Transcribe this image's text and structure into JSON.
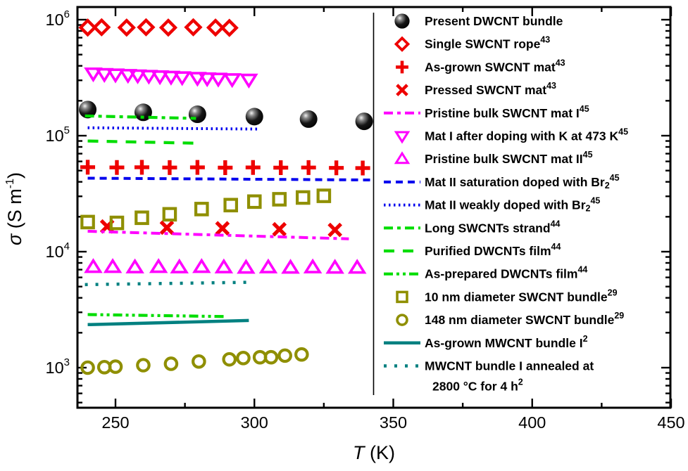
{
  "figure": {
    "background": "#ffffff",
    "frame_color": "#000000",
    "legend_divider": true
  },
  "chart_data": {
    "type": "scatter",
    "title": "",
    "xlabel": "T (K)",
    "ylabel": "σ (S m⁻¹)",
    "grid": false,
    "legend_position": "right",
    "x_axis": {
      "min": 236.3,
      "max": 449.8,
      "major_ticks": [
        250,
        300,
        350,
        400,
        450
      ],
      "minor_ticks": [
        275,
        325,
        375,
        425
      ]
    },
    "y_axis": {
      "scale": "log",
      "min": 450,
      "max": 1300000,
      "decade_exponents": [
        3,
        4,
        5,
        6
      ],
      "tick_label_base": "10"
    },
    "series": [
      {
        "id": "present-dwcnt-bundle",
        "label": "Present DWCNT bundle",
        "sup": "",
        "kind": "marker",
        "marker": "sphere",
        "color": "#000000",
        "x": [
          240,
          260,
          279.5,
          300,
          319.5,
          339.5
        ],
        "y": [
          168000,
          159000,
          153000,
          146000,
          139000,
          133000
        ]
      },
      {
        "id": "single-swcnt-rope",
        "label": "Single SWCNT rope",
        "sup": "43",
        "kind": "marker",
        "marker": "diamond",
        "color": "#ee0000",
        "x": [
          240,
          245,
          254,
          261,
          269,
          278,
          286,
          291
        ],
        "y": [
          855000,
          860000,
          855000,
          860000,
          855000,
          860000,
          855000,
          850000
        ]
      },
      {
        "id": "as-grown-swcnt-mat",
        "label": "As-grown SWCNT mat",
        "sup": "43",
        "kind": "marker",
        "marker": "plus",
        "color": "#ee0000",
        "x": [
          240,
          250.5,
          259.5,
          269.5,
          279.5,
          289.5,
          299.5,
          309.5,
          319.5,
          329.5,
          339
        ],
        "y": [
          53500,
          53200,
          53400,
          53100,
          53300,
          53000,
          53200,
          53000,
          53100,
          52800,
          52600
        ]
      },
      {
        "id": "pressed-swcnt-mat",
        "label": "Pressed SWCNT mat",
        "sup": "43",
        "kind": "marker",
        "marker": "x",
        "color": "#ee0000",
        "x": [
          247,
          268.5,
          288.5,
          309,
          329
        ],
        "y": [
          16500,
          16100,
          15900,
          15600,
          15400
        ]
      },
      {
        "id": "pristine-bulk-swcnt-mat-i",
        "label": "Pristine bulk SWCNT mat I",
        "sup": "45",
        "kind": "line",
        "dash": "dashdot",
        "width": 4,
        "color": "#ff00ff",
        "x": [
          240,
          334
        ],
        "y": [
          15000,
          12900
        ]
      },
      {
        "id": "mat-i-doped-k-473",
        "label": "Mat I after doping with K at 473 K",
        "sup": "45",
        "kind": "marker",
        "marker": "triangle-down",
        "color": "#ff00ff",
        "x": [
          242,
          246,
          250,
          254.5,
          258,
          262,
          266,
          270,
          274,
          279.5,
          283,
          287,
          292,
          298
        ],
        "y": [
          345000,
          341000,
          338000,
          335000,
          332000,
          329000,
          326000,
          323000,
          320000,
          316000,
          313000,
          311000,
          308000,
          305000
        ]
      },
      {
        "id": "pristine-bulk-swcnt-mat-ii",
        "label": "Pristine bulk SWCNT mat II",
        "sup": "45",
        "kind": "marker",
        "marker": "triangle-up",
        "color": "#ff00ff",
        "x": [
          242,
          249,
          257,
          265.5,
          273,
          281,
          289,
          297,
          305,
          313,
          321,
          329,
          337
        ],
        "y": [
          7350,
          7350,
          7300,
          7350,
          7300,
          7350,
          7300,
          7250,
          7300,
          7250,
          7300,
          7250,
          7250
        ]
      },
      {
        "id": "mat-ii-saturation-doped-br2",
        "label": "Mat II saturation doped with Br₂",
        "sup": "45",
        "kind": "line",
        "dash": "dashed",
        "width": 4,
        "color": "#0000ee",
        "x": [
          240,
          342
        ],
        "y": [
          43000,
          41500
        ]
      },
      {
        "id": "mat-ii-weakly-doped-br2",
        "label": "Mat II weakly doped with Br₂",
        "sup": "45",
        "kind": "line",
        "dash": "dotted",
        "width": 4,
        "color": "#0000ee",
        "x": [
          240,
          302
        ],
        "y": [
          117000,
          114000
        ]
      },
      {
        "id": "long-swcnts-strand",
        "label": "Long SWCNTs strand",
        "sup": "44",
        "kind": "line",
        "dash": "dashdot",
        "width": 4.2,
        "color": "#00dd00",
        "x": [
          239,
          279
        ],
        "y": [
          148000,
          141000
        ]
      },
      {
        "id": "purified-dwcnts-film",
        "label": "Purified DWCNTs film",
        "sup": "44",
        "kind": "line",
        "dash": "longdash",
        "width": 4.2,
        "color": "#00dd00",
        "x": [
          240,
          280
        ],
        "y": [
          90000,
          86000
        ]
      },
      {
        "id": "as-prepared-dwcnts-film",
        "label": "As-prepared DWCNTs film",
        "sup": "44",
        "kind": "line",
        "dash": "dashdotdot",
        "width": 4.2,
        "color": "#00dd00",
        "x": [
          240,
          289
        ],
        "y": [
          2870,
          2760
        ]
      },
      {
        "id": "swcnt-bundle-10nm",
        "label": "10 nm diameter SWCNT bundle",
        "sup": "29",
        "kind": "marker",
        "marker": "square",
        "color": "#8f8f00",
        "x": [
          240,
          250.5,
          259.5,
          269.5,
          281,
          291.5,
          300,
          309,
          317.5,
          325
        ],
        "y": [
          18000,
          17700,
          19600,
          21000,
          23300,
          25200,
          27000,
          28300,
          29300,
          30300
        ]
      },
      {
        "id": "swcnt-bundle-148nm",
        "label": "148 nm diameter SWCNT bundle",
        "sup": "29",
        "kind": "marker",
        "marker": "circle",
        "color": "#8f8f00",
        "x": [
          240,
          246,
          250,
          260,
          270,
          280,
          291,
          296,
          302,
          306,
          311,
          317
        ],
        "y": [
          1000,
          1010,
          1020,
          1050,
          1080,
          1130,
          1180,
          1210,
          1230,
          1230,
          1270,
          1300
        ]
      },
      {
        "id": "as-grown-mwcnt-bundle-i",
        "label": "As-grown MWCNT bundle I",
        "sup": "2",
        "kind": "line",
        "dash": "solid",
        "width": 4.5,
        "color": "#008080",
        "x": [
          240,
          298
        ],
        "y": [
          2350,
          2550
        ]
      },
      {
        "id": "mwcnt-bundle-i-annealed",
        "label": "MWCNT bundle I annealed at",
        "sup": "",
        "label2": "2800 °C for 4 h",
        "sup2": "2",
        "kind": "line",
        "dash": "sparsedot",
        "width": 4.5,
        "color": "#008080",
        "x": [
          239,
          299
        ],
        "y": [
          5200,
          5450
        ]
      }
    ]
  }
}
